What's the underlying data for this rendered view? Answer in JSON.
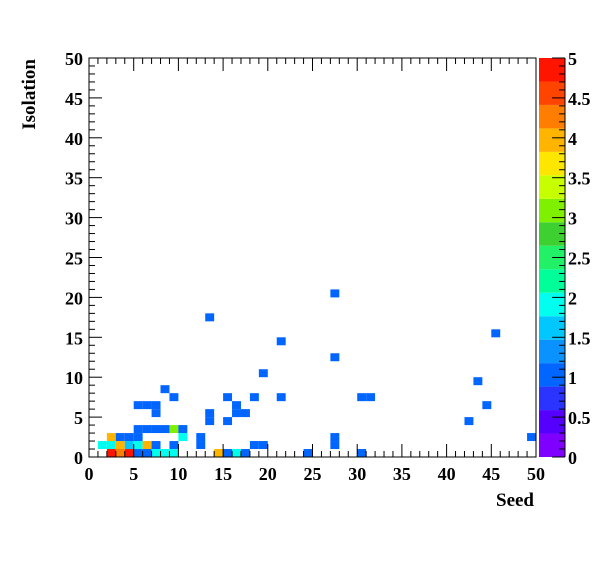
{
  "chart_data": {
    "type": "heatmap",
    "title": "",
    "xlabel": "Seed",
    "ylabel": "Isolation",
    "xlim": [
      0,
      50
    ],
    "ylim": [
      0,
      50
    ],
    "bin_width": 1,
    "x_ticks": [
      "0",
      "5",
      "10",
      "15",
      "20",
      "25",
      "30",
      "35",
      "40",
      "45",
      "50"
    ],
    "y_ticks": [
      "0",
      "5",
      "10",
      "15",
      "20",
      "25",
      "30",
      "35",
      "40",
      "45",
      "50"
    ],
    "z_range": [
      0,
      5
    ],
    "z_ticks": [
      "0",
      "0.5",
      "1",
      "1.5",
      "2",
      "2.5",
      "3",
      "3.5",
      "4",
      "4.5",
      "5"
    ],
    "palette": [
      "#7f00ff",
      "#5500ff",
      "#2b33ff",
      "#0066ff",
      "#0a93ff",
      "#00c8ff",
      "#00ffee",
      "#00ff99",
      "#22f066",
      "#3dd030",
      "#7ff000",
      "#c8ff00",
      "#ffe600",
      "#ffb400",
      "#ff7d00",
      "#ff4400",
      "#ff1400"
    ],
    "grid": false,
    "cells": [
      {
        "x": 2,
        "y": 0,
        "z": 5
      },
      {
        "x": 3,
        "y": 0,
        "z": 4.2
      },
      {
        "x": 4,
        "y": 0,
        "z": 5
      },
      {
        "x": 5,
        "y": 0,
        "z": 1
      },
      {
        "x": 6,
        "y": 0,
        "z": 1
      },
      {
        "x": 7,
        "y": 0,
        "z": 2
      },
      {
        "x": 8,
        "y": 0,
        "z": 2
      },
      {
        "x": 9,
        "y": 0,
        "z": 2
      },
      {
        "x": 14,
        "y": 0,
        "z": 4
      },
      {
        "x": 15,
        "y": 0,
        "z": 1
      },
      {
        "x": 16,
        "y": 0,
        "z": 2
      },
      {
        "x": 17,
        "y": 0,
        "z": 1
      },
      {
        "x": 24,
        "y": 0,
        "z": 1
      },
      {
        "x": 30,
        "y": 0,
        "z": 1
      },
      {
        "x": 1,
        "y": 1,
        "z": 2
      },
      {
        "x": 2,
        "y": 1,
        "z": 2
      },
      {
        "x": 3,
        "y": 1,
        "z": 4
      },
      {
        "x": 4,
        "y": 1,
        "z": 1.5
      },
      {
        "x": 5,
        "y": 1,
        "z": 2
      },
      {
        "x": 6,
        "y": 1,
        "z": 4
      },
      {
        "x": 7,
        "y": 1,
        "z": 1
      },
      {
        "x": 9,
        "y": 1,
        "z": 1
      },
      {
        "x": 12,
        "y": 1,
        "z": 1
      },
      {
        "x": 18,
        "y": 1,
        "z": 1
      },
      {
        "x": 19,
        "y": 1,
        "z": 1
      },
      {
        "x": 27,
        "y": 1,
        "z": 1
      },
      {
        "x": 2,
        "y": 2,
        "z": 4
      },
      {
        "x": 3,
        "y": 2,
        "z": 1
      },
      {
        "x": 4,
        "y": 2,
        "z": 1
      },
      {
        "x": 5,
        "y": 2,
        "z": 1
      },
      {
        "x": 10,
        "y": 2,
        "z": 2
      },
      {
        "x": 12,
        "y": 2,
        "z": 1
      },
      {
        "x": 27,
        "y": 2,
        "z": 1
      },
      {
        "x": 49,
        "y": 2,
        "z": 1
      },
      {
        "x": 5,
        "y": 3,
        "z": 1
      },
      {
        "x": 6,
        "y": 3,
        "z": 1
      },
      {
        "x": 7,
        "y": 3,
        "z": 1
      },
      {
        "x": 8,
        "y": 3,
        "z": 1
      },
      {
        "x": 9,
        "y": 3,
        "z": 3
      },
      {
        "x": 10,
        "y": 3,
        "z": 1
      },
      {
        "x": 13,
        "y": 4,
        "z": 1
      },
      {
        "x": 15,
        "y": 4,
        "z": 1
      },
      {
        "x": 42,
        "y": 4,
        "z": 1
      },
      {
        "x": 7,
        "y": 5,
        "z": 1
      },
      {
        "x": 13,
        "y": 5,
        "z": 1
      },
      {
        "x": 16,
        "y": 5,
        "z": 1
      },
      {
        "x": 17,
        "y": 5,
        "z": 1
      },
      {
        "x": 5,
        "y": 6,
        "z": 1
      },
      {
        "x": 6,
        "y": 6,
        "z": 1
      },
      {
        "x": 7,
        "y": 6,
        "z": 1
      },
      {
        "x": 16,
        "y": 6,
        "z": 1
      },
      {
        "x": 44,
        "y": 6,
        "z": 1
      },
      {
        "x": 9,
        "y": 7,
        "z": 1
      },
      {
        "x": 15,
        "y": 7,
        "z": 1
      },
      {
        "x": 18,
        "y": 7,
        "z": 1
      },
      {
        "x": 21,
        "y": 7,
        "z": 1
      },
      {
        "x": 30,
        "y": 7,
        "z": 1
      },
      {
        "x": 31,
        "y": 7,
        "z": 1
      },
      {
        "x": 8,
        "y": 8,
        "z": 1
      },
      {
        "x": 43,
        "y": 9,
        "z": 1
      },
      {
        "x": 19,
        "y": 10,
        "z": 1
      },
      {
        "x": 27,
        "y": 12,
        "z": 1
      },
      {
        "x": 21,
        "y": 14,
        "z": 1
      },
      {
        "x": 45,
        "y": 15,
        "z": 1
      },
      {
        "x": 13,
        "y": 17,
        "z": 1
      },
      {
        "x": 27,
        "y": 20,
        "z": 1
      }
    ]
  }
}
